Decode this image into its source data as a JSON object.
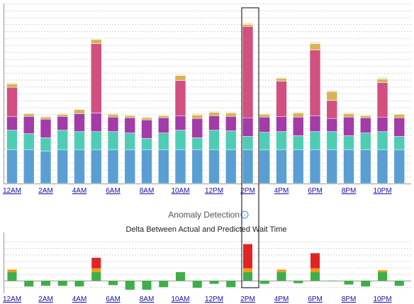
{
  "chart_data": [
    {
      "type": "bar",
      "stacked": true,
      "categories": [
        "12AM",
        "1AM",
        "2AM",
        "3AM",
        "4AM",
        "5AM",
        "6AM",
        "7AM",
        "8AM",
        "9AM",
        "10AM",
        "11AM",
        "12PM",
        "1PM",
        "2PM",
        "3PM",
        "4PM",
        "5PM",
        "6PM",
        "7PM",
        "8PM",
        "9PM",
        "10PM",
        "11PM"
      ],
      "tick_labels": [
        "12AM",
        "2AM",
        "4AM",
        "6AM",
        "8AM",
        "10AM",
        "12PM",
        "2PM",
        "4PM",
        "6PM",
        "8PM",
        "10PM"
      ],
      "title": "",
      "xlabel": "",
      "ylabel": "",
      "ylim": [
        0,
        260
      ],
      "grid": true,
      "highlighted_category": "2PM",
      "series": [
        {
          "color": "#5a9fd4",
          "values": [
            49,
            49,
            47,
            49,
            49,
            49,
            49,
            49,
            49,
            49,
            49,
            49,
            49,
            49,
            49,
            49,
            49,
            49,
            49,
            49,
            49,
            49,
            49,
            49
          ]
        },
        {
          "color": "#4ecdb4",
          "values": [
            28,
            23,
            19,
            28,
            26,
            26,
            26,
            24,
            16,
            24,
            28,
            17,
            28,
            27,
            19,
            25,
            26,
            20,
            26,
            26,
            20,
            24,
            26,
            19
          ]
        },
        {
          "color": "#a33ba8",
          "values": [
            20,
            25,
            27,
            20,
            26,
            27,
            21,
            22,
            27,
            22,
            21,
            28,
            21,
            21,
            27,
            22,
            22,
            27,
            23,
            19,
            27,
            22,
            21,
            27
          ]
        },
        {
          "color": "#d1507f",
          "values": [
            42,
            0,
            0,
            0,
            0,
            100,
            0,
            0,
            0,
            0,
            51,
            0,
            0,
            0,
            132,
            0,
            51,
            0,
            95,
            26,
            0,
            0,
            50,
            0
          ]
        },
        {
          "color": "#d4b555",
          "values": [
            5,
            4,
            3,
            3,
            6,
            6,
            4,
            3,
            3,
            3,
            7,
            5,
            5,
            5,
            3,
            4,
            4,
            6,
            9,
            13,
            5,
            3,
            5,
            5
          ]
        },
        {
          "color": "#f0ead0",
          "values": [
            2,
            0,
            2,
            2,
            0,
            2,
            2,
            2,
            2,
            2,
            2,
            3,
            2,
            2,
            3,
            2,
            2,
            2,
            3,
            2,
            2,
            2,
            3,
            0
          ]
        }
      ]
    },
    {
      "type": "bar",
      "stacked": true,
      "title": "Anomaly Detection",
      "subtitle": "Delta Between Actual and Predicted Wait Time",
      "categories": [
        "12AM",
        "1AM",
        "2AM",
        "3AM",
        "4AM",
        "5AM",
        "6AM",
        "7AM",
        "8AM",
        "9AM",
        "10AM",
        "11AM",
        "12PM",
        "1PM",
        "2PM",
        "3PM",
        "4PM",
        "5PM",
        "6PM",
        "7PM",
        "8PM",
        "9PM",
        "10PM",
        "11PM"
      ],
      "tick_labels": [
        "12AM",
        "2AM",
        "4AM",
        "6AM",
        "8AM",
        "10AM",
        "12PM",
        "2PM",
        "4PM",
        "6PM",
        "8PM",
        "10PM"
      ],
      "ylim": [
        -30,
        60
      ],
      "grid": true,
      "highlighted_category": "2PM",
      "series": [
        {
          "color": "#3fae49",
          "values": [
            13,
            -9,
            -8,
            -8,
            -9,
            13,
            -7,
            -14,
            -14,
            -10,
            13,
            -11,
            -5,
            -10,
            13,
            -5,
            13,
            -4,
            13,
            -1,
            -6,
            -9,
            13,
            -8
          ]
        },
        {
          "color": "#ef9b20",
          "values": [
            4,
            0,
            0,
            0,
            0,
            6,
            0,
            0,
            0,
            0,
            0,
            0,
            0,
            0,
            6,
            0,
            4,
            0,
            6,
            0,
            0,
            0,
            3,
            0
          ]
        },
        {
          "color": "#e02424",
          "values": [
            0,
            0,
            0,
            0,
            0,
            16,
            0,
            0,
            0,
            0,
            0,
            0,
            0,
            0,
            37,
            0,
            0,
            0,
            23,
            0,
            0,
            0,
            0,
            0
          ]
        }
      ]
    }
  ]
}
